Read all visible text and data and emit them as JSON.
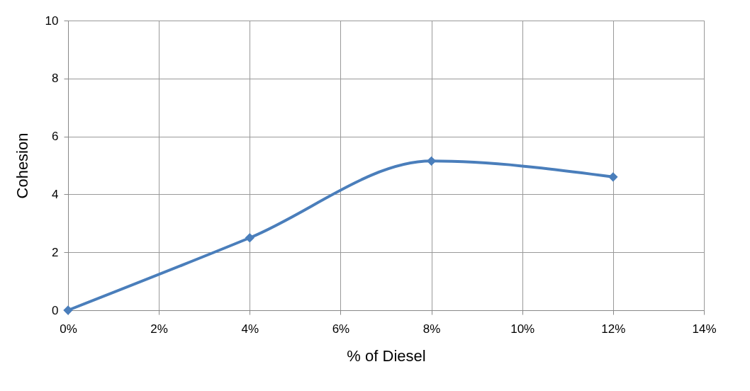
{
  "chart_data": {
    "type": "line",
    "xlabel": "% of Diesel",
    "ylabel": "Cohesion",
    "x": [
      0,
      4,
      8,
      12
    ],
    "series": [
      {
        "color": "#4a7ebb",
        "values": [
          0,
          2.5,
          5.15,
          4.6
        ]
      }
    ],
    "xlim": [
      0,
      14
    ],
    "xticks": [
      {
        "value": 0,
        "label": "0%"
      },
      {
        "value": 2,
        "label": "2%"
      },
      {
        "value": 4,
        "label": "4%"
      },
      {
        "value": 6,
        "label": "6%"
      },
      {
        "value": 8,
        "label": "8%"
      },
      {
        "value": 10,
        "label": "10%"
      },
      {
        "value": 12,
        "label": "12%"
      },
      {
        "value": 14,
        "label": "14%"
      }
    ],
    "ylim": [
      0,
      10
    ],
    "yticks": [
      0,
      2,
      4,
      6,
      8,
      10
    ],
    "grid": true,
    "marker": "diamond",
    "line_style": "solid"
  }
}
